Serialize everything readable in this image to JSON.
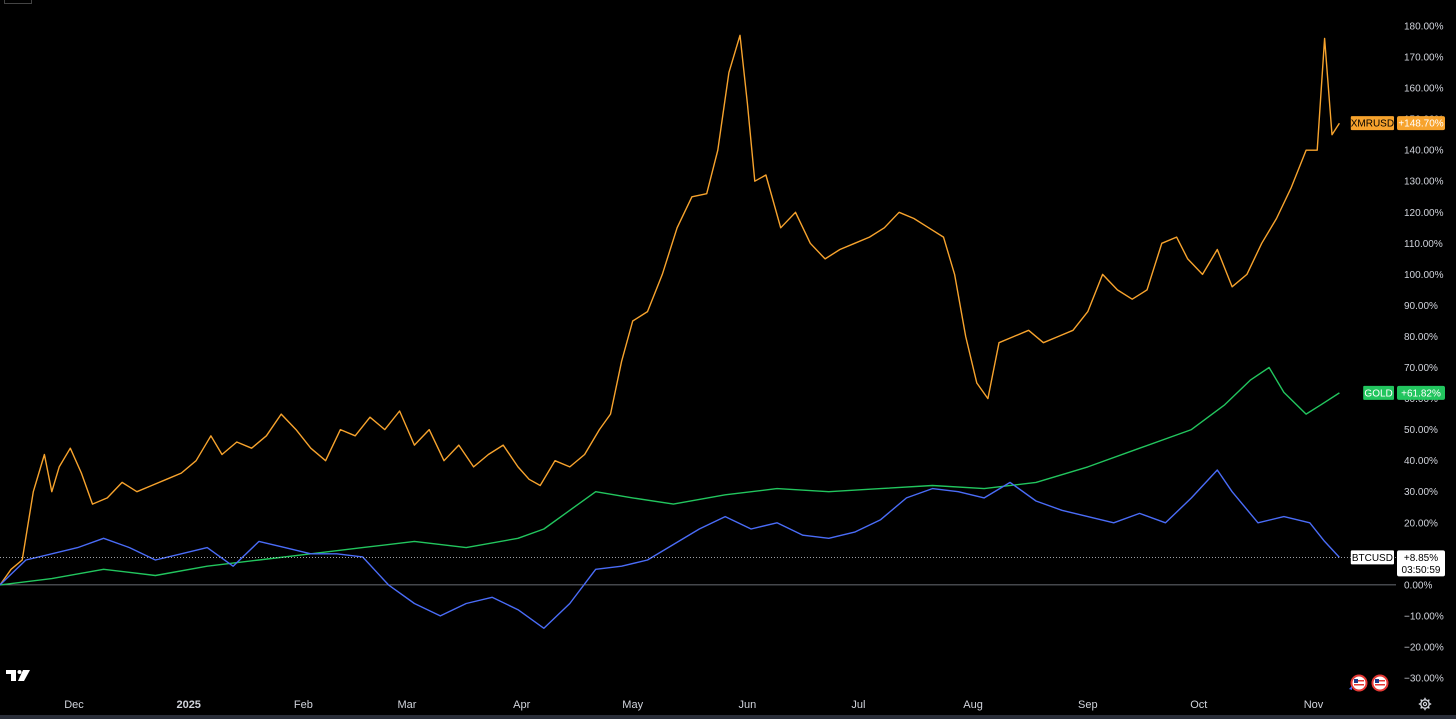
{
  "chart_data": {
    "type": "line",
    "x_ticks": [
      {
        "label": "Dec",
        "date": "2024-12-01",
        "bold": false
      },
      {
        "label": "2025",
        "date": "2025-01-01",
        "bold": true
      },
      {
        "label": "Feb",
        "date": "2025-02-01",
        "bold": false
      },
      {
        "label": "Mar",
        "date": "2025-03-01",
        "bold": false
      },
      {
        "label": "Apr",
        "date": "2025-04-01",
        "bold": false
      },
      {
        "label": "May",
        "date": "2025-05-01",
        "bold": false
      },
      {
        "label": "Jun",
        "date": "2025-06-01",
        "bold": false
      },
      {
        "label": "Jul",
        "date": "2025-07-01",
        "bold": false
      },
      {
        "label": "Aug",
        "date": "2025-08-01",
        "bold": false
      },
      {
        "label": "Sep",
        "date": "2025-09-01",
        "bold": false
      },
      {
        "label": "Oct",
        "date": "2025-10-01",
        "bold": false
      },
      {
        "label": "Nov",
        "date": "2025-11-01",
        "bold": false
      }
    ],
    "y_ticks": [
      "180.00%",
      "170.00%",
      "160.00%",
      "150.00%",
      "140.00%",
      "130.00%",
      "120.00%",
      "110.00%",
      "100.00%",
      "90.00%",
      "80.00%",
      "70.00%",
      "60.00%",
      "50.00%",
      "40.00%",
      "30.00%",
      "20.00%",
      "10.00%",
      "0.00%",
      "−10.00%",
      "−20.00%",
      "−30.00%"
    ],
    "y_unit": "percent",
    "ylim": [
      -30,
      180
    ],
    "baseline": 0,
    "series": [
      {
        "name": "XMRUSD",
        "color": "#f7a32d",
        "last_value": "+148.70%",
        "points": [
          [
            "2024-11-11",
            0
          ],
          [
            "2024-11-14",
            5
          ],
          [
            "2024-11-17",
            8
          ],
          [
            "2024-11-20",
            30
          ],
          [
            "2024-11-23",
            42
          ],
          [
            "2024-11-25",
            30
          ],
          [
            "2024-11-27",
            38
          ],
          [
            "2024-11-30",
            44
          ],
          [
            "2024-12-03",
            36
          ],
          [
            "2024-12-06",
            26
          ],
          [
            "2024-12-10",
            28
          ],
          [
            "2024-12-14",
            33
          ],
          [
            "2024-12-18",
            30
          ],
          [
            "2024-12-22",
            32
          ],
          [
            "2024-12-26",
            34
          ],
          [
            "2024-12-30",
            36
          ],
          [
            "2025-01-03",
            40
          ],
          [
            "2025-01-07",
            48
          ],
          [
            "2025-01-10",
            42
          ],
          [
            "2025-01-14",
            46
          ],
          [
            "2025-01-18",
            44
          ],
          [
            "2025-01-22",
            48
          ],
          [
            "2025-01-26",
            55
          ],
          [
            "2025-01-30",
            50
          ],
          [
            "2025-02-03",
            44
          ],
          [
            "2025-02-07",
            40
          ],
          [
            "2025-02-11",
            50
          ],
          [
            "2025-02-15",
            48
          ],
          [
            "2025-02-19",
            54
          ],
          [
            "2025-02-23",
            50
          ],
          [
            "2025-02-27",
            56
          ],
          [
            "2025-03-03",
            45
          ],
          [
            "2025-03-07",
            50
          ],
          [
            "2025-03-11",
            40
          ],
          [
            "2025-03-15",
            45
          ],
          [
            "2025-03-19",
            38
          ],
          [
            "2025-03-23",
            42
          ],
          [
            "2025-03-27",
            45
          ],
          [
            "2025-03-31",
            38
          ],
          [
            "2025-04-03",
            34
          ],
          [
            "2025-04-06",
            32
          ],
          [
            "2025-04-10",
            40
          ],
          [
            "2025-04-14",
            38
          ],
          [
            "2025-04-18",
            42
          ],
          [
            "2025-04-22",
            50
          ],
          [
            "2025-04-25",
            55
          ],
          [
            "2025-04-28",
            72
          ],
          [
            "2025-05-01",
            85
          ],
          [
            "2025-05-05",
            88
          ],
          [
            "2025-05-09",
            100
          ],
          [
            "2025-05-13",
            115
          ],
          [
            "2025-05-17",
            125
          ],
          [
            "2025-05-21",
            126
          ],
          [
            "2025-05-24",
            140
          ],
          [
            "2025-05-27",
            165
          ],
          [
            "2025-05-30",
            177
          ],
          [
            "2025-06-01",
            155
          ],
          [
            "2025-06-03",
            130
          ],
          [
            "2025-06-06",
            132
          ],
          [
            "2025-06-10",
            115
          ],
          [
            "2025-06-14",
            120
          ],
          [
            "2025-06-18",
            110
          ],
          [
            "2025-06-22",
            105
          ],
          [
            "2025-06-26",
            108
          ],
          [
            "2025-06-30",
            110
          ],
          [
            "2025-07-04",
            112
          ],
          [
            "2025-07-08",
            115
          ],
          [
            "2025-07-12",
            120
          ],
          [
            "2025-07-16",
            118
          ],
          [
            "2025-07-20",
            115
          ],
          [
            "2025-07-24",
            112
          ],
          [
            "2025-07-27",
            100
          ],
          [
            "2025-07-30",
            80
          ],
          [
            "2025-08-02",
            65
          ],
          [
            "2025-08-05",
            60
          ],
          [
            "2025-08-08",
            78
          ],
          [
            "2025-08-12",
            80
          ],
          [
            "2025-08-16",
            82
          ],
          [
            "2025-08-20",
            78
          ],
          [
            "2025-08-24",
            80
          ],
          [
            "2025-08-28",
            82
          ],
          [
            "2025-09-01",
            88
          ],
          [
            "2025-09-05",
            100
          ],
          [
            "2025-09-09",
            95
          ],
          [
            "2025-09-13",
            92
          ],
          [
            "2025-09-17",
            95
          ],
          [
            "2025-09-21",
            110
          ],
          [
            "2025-09-25",
            112
          ],
          [
            "2025-09-28",
            105
          ],
          [
            "2025-10-02",
            100
          ],
          [
            "2025-10-06",
            108
          ],
          [
            "2025-10-10",
            96
          ],
          [
            "2025-10-14",
            100
          ],
          [
            "2025-10-18",
            110
          ],
          [
            "2025-10-22",
            118
          ],
          [
            "2025-10-26",
            128
          ],
          [
            "2025-10-30",
            140
          ],
          [
            "2025-11-02",
            140
          ],
          [
            "2025-11-04",
            176
          ],
          [
            "2025-11-06",
            145
          ],
          [
            "2025-11-08",
            148.7
          ]
        ]
      },
      {
        "name": "GOLD",
        "color": "#22c55e",
        "last_value": "+61.82%",
        "points": [
          [
            "2024-11-11",
            0
          ],
          [
            "2024-11-25",
            2
          ],
          [
            "2024-12-09",
            5
          ],
          [
            "2024-12-23",
            3
          ],
          [
            "2025-01-06",
            6
          ],
          [
            "2025-01-20",
            8
          ],
          [
            "2025-02-03",
            10
          ],
          [
            "2025-02-17",
            12
          ],
          [
            "2025-03-03",
            14
          ],
          [
            "2025-03-17",
            12
          ],
          [
            "2025-03-31",
            15
          ],
          [
            "2025-04-07",
            18
          ],
          [
            "2025-04-14",
            24
          ],
          [
            "2025-04-21",
            30
          ],
          [
            "2025-05-01",
            28
          ],
          [
            "2025-05-12",
            26
          ],
          [
            "2025-05-26",
            29
          ],
          [
            "2025-06-09",
            31
          ],
          [
            "2025-06-23",
            30
          ],
          [
            "2025-07-07",
            31
          ],
          [
            "2025-07-21",
            32
          ],
          [
            "2025-08-04",
            31
          ],
          [
            "2025-08-18",
            33
          ],
          [
            "2025-09-01",
            38
          ],
          [
            "2025-09-15",
            44
          ],
          [
            "2025-09-29",
            50
          ],
          [
            "2025-10-08",
            58
          ],
          [
            "2025-10-15",
            66
          ],
          [
            "2025-10-20",
            70
          ],
          [
            "2025-10-24",
            62
          ],
          [
            "2025-10-30",
            55
          ],
          [
            "2025-11-03",
            58
          ],
          [
            "2025-11-08",
            61.82
          ]
        ]
      },
      {
        "name": "BTCUSD",
        "color": "#4a6cf7",
        "last_value": "+8.85%",
        "countdown": "03:50:59",
        "points": [
          [
            "2024-11-11",
            0
          ],
          [
            "2024-11-18",
            8
          ],
          [
            "2024-11-25",
            10
          ],
          [
            "2024-12-02",
            12
          ],
          [
            "2024-12-09",
            15
          ],
          [
            "2024-12-16",
            12
          ],
          [
            "2024-12-23",
            8
          ],
          [
            "2024-12-30",
            10
          ],
          [
            "2025-01-06",
            12
          ],
          [
            "2025-01-13",
            6
          ],
          [
            "2025-01-20",
            14
          ],
          [
            "2025-01-27",
            12
          ],
          [
            "2025-02-03",
            10
          ],
          [
            "2025-02-10",
            10
          ],
          [
            "2025-02-17",
            9
          ],
          [
            "2025-02-24",
            0
          ],
          [
            "2025-03-03",
            -6
          ],
          [
            "2025-03-10",
            -10
          ],
          [
            "2025-03-17",
            -6
          ],
          [
            "2025-03-24",
            -4
          ],
          [
            "2025-03-31",
            -8
          ],
          [
            "2025-04-07",
            -14
          ],
          [
            "2025-04-14",
            -6
          ],
          [
            "2025-04-21",
            5
          ],
          [
            "2025-04-28",
            6
          ],
          [
            "2025-05-05",
            8
          ],
          [
            "2025-05-12",
            13
          ],
          [
            "2025-05-19",
            18
          ],
          [
            "2025-05-26",
            22
          ],
          [
            "2025-06-02",
            18
          ],
          [
            "2025-06-09",
            20
          ],
          [
            "2025-06-16",
            16
          ],
          [
            "2025-06-23",
            15
          ],
          [
            "2025-06-30",
            17
          ],
          [
            "2025-07-07",
            21
          ],
          [
            "2025-07-14",
            28
          ],
          [
            "2025-07-21",
            31
          ],
          [
            "2025-07-28",
            30
          ],
          [
            "2025-08-04",
            28
          ],
          [
            "2025-08-11",
            33
          ],
          [
            "2025-08-18",
            27
          ],
          [
            "2025-08-25",
            24
          ],
          [
            "2025-09-01",
            22
          ],
          [
            "2025-09-08",
            20
          ],
          [
            "2025-09-15",
            23
          ],
          [
            "2025-09-22",
            20
          ],
          [
            "2025-09-29",
            28
          ],
          [
            "2025-10-06",
            37
          ],
          [
            "2025-10-10",
            30
          ],
          [
            "2025-10-17",
            20
          ],
          [
            "2025-10-24",
            22
          ],
          [
            "2025-10-31",
            20
          ],
          [
            "2025-11-04",
            14
          ],
          [
            "2025-11-08",
            8.85
          ]
        ]
      }
    ]
  }
}
